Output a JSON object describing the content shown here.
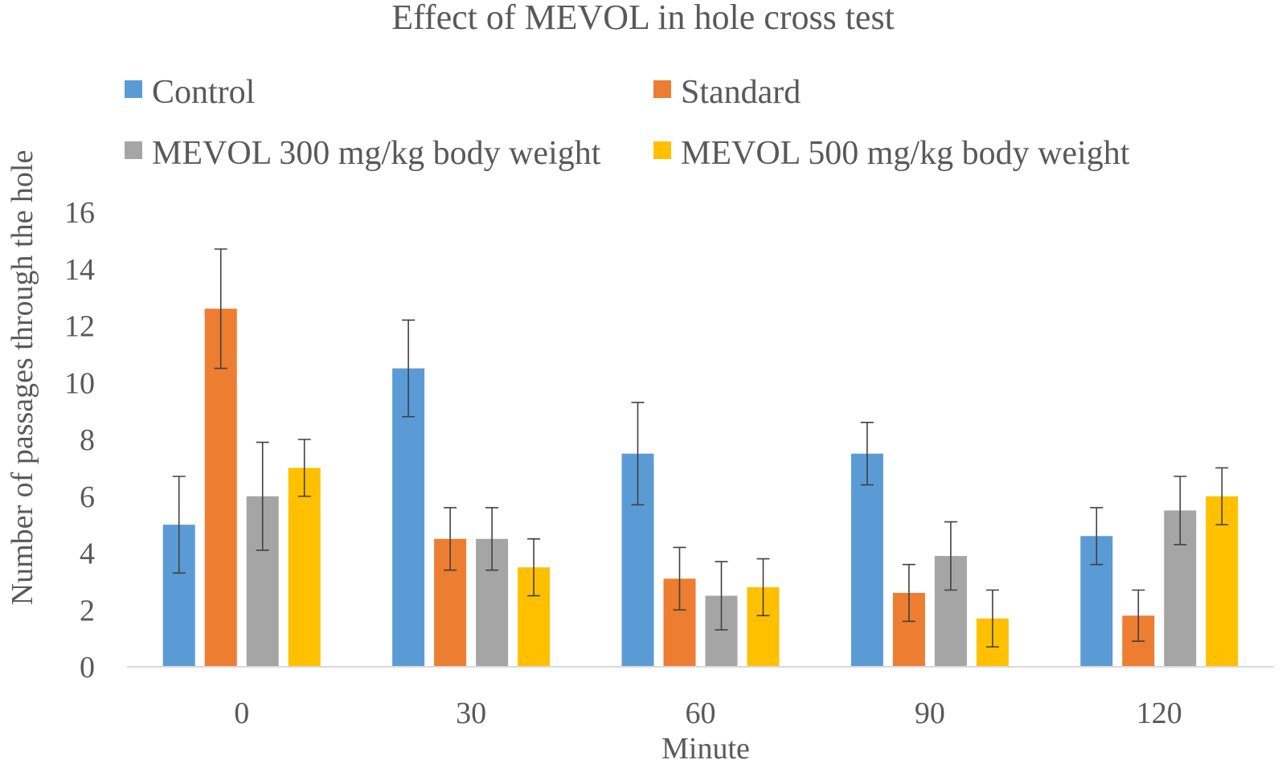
{
  "chart_data": {
    "type": "bar",
    "title": "Effect of MEVOL in hole cross test",
    "xlabel": "Minute",
    "ylabel": "Number of passages through the hole",
    "categories": [
      "0",
      "30",
      "60",
      "90",
      "120"
    ],
    "ylim": [
      0,
      16
    ],
    "yticks": [
      0,
      2,
      4,
      6,
      8,
      10,
      12,
      14,
      16
    ],
    "grid": false,
    "legend_position": "top",
    "series": [
      {
        "name": "Control",
        "color": "#5B9BD5",
        "values": [
          5.0,
          10.5,
          7.5,
          7.5,
          4.6
        ],
        "errors": [
          1.7,
          1.7,
          1.8,
          1.1,
          1.0
        ]
      },
      {
        "name": "Standard",
        "color": "#ED7D31",
        "values": [
          12.6,
          4.5,
          3.1,
          2.6,
          1.8
        ],
        "errors": [
          2.1,
          1.1,
          1.1,
          1.0,
          0.9
        ]
      },
      {
        "name": "MEVOL 300 mg/kg body weight",
        "color": "#A5A5A5",
        "values": [
          6.0,
          4.5,
          2.5,
          3.9,
          5.5
        ],
        "errors": [
          1.9,
          1.1,
          1.2,
          1.2,
          1.2
        ]
      },
      {
        "name": "MEVOL 500 mg/kg body weight",
        "color": "#FFC000",
        "values": [
          7.0,
          3.5,
          2.8,
          1.7,
          6.0
        ],
        "errors": [
          1.0,
          1.0,
          1.0,
          1.0,
          1.0
        ]
      }
    ]
  }
}
